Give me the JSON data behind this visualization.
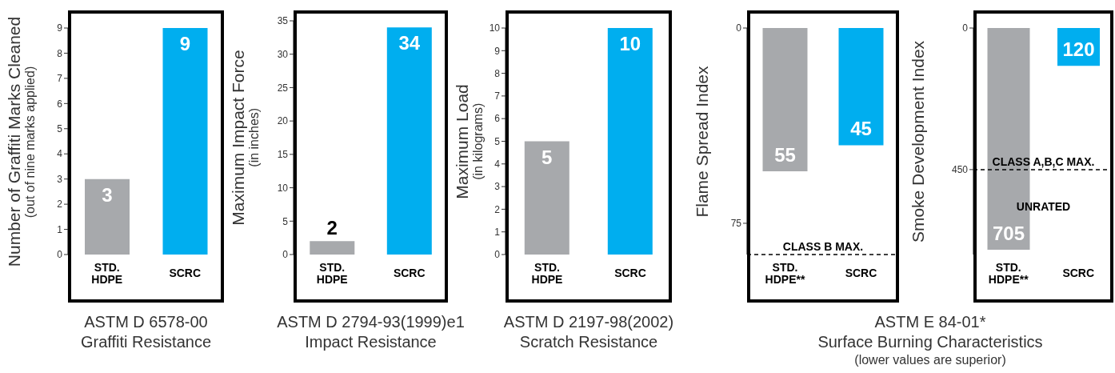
{
  "chart_data": [
    {
      "type": "bar",
      "title": "ASTM D 6578-00",
      "subtitle": "Graffiti Resistance",
      "ylabel": "Number of Graffiti Marks Cleaned\n(out of nine marks applied)",
      "categories": [
        "STD. HDPE",
        "SCRC"
      ],
      "values": [
        3,
        9
      ],
      "colors": [
        "#a7a9ac",
        "#00aeef"
      ],
      "ylim": [
        0,
        9
      ],
      "yticks": [
        0,
        1,
        2,
        3,
        4,
        5,
        6,
        7,
        8,
        9
      ],
      "data_labels": true
    },
    {
      "type": "bar",
      "title": "ASTM D 2794-93(1999)e1",
      "subtitle": "Impact Resistance",
      "ylabel": "Maximum Impact Force\n(in inches)",
      "categories": [
        "STD. HDPE",
        "SCRC"
      ],
      "values": [
        2,
        34
      ],
      "colors": [
        "#a7a9ac",
        "#00aeef"
      ],
      "ylim": [
        0,
        35
      ],
      "yticks": [
        0,
        5,
        10,
        15,
        20,
        25,
        30,
        35
      ],
      "data_labels": true
    },
    {
      "type": "bar",
      "title": "ASTM D 2197-98(2002)",
      "subtitle": "Scratch Resistance",
      "ylabel": "Maximum Load\n(in kilograms)",
      "categories": [
        "STD. HDPE",
        "SCRC"
      ],
      "values": [
        5,
        10
      ],
      "colors": [
        "#a7a9ac",
        "#00aeef"
      ],
      "ylim": [
        0,
        10
      ],
      "yticks": [
        0,
        1,
        2,
        3,
        4,
        5,
        6,
        7,
        8,
        9,
        10
      ],
      "data_labels": true
    },
    {
      "type": "bar",
      "title": "ASTM E 84-01*",
      "subtitle": "Surface Burning Characteristics",
      "annotations": [
        "(lower values are superior)"
      ],
      "ylabel": "Flame Spread Index",
      "categories": [
        "STD. HDPE**",
        "SCRC"
      ],
      "values": [
        55,
        45
      ],
      "colors": [
        "#a7a9ac",
        "#00aeef"
      ],
      "ylim": [
        87,
        0
      ],
      "yticks": [
        0,
        75
      ],
      "data_labels": true,
      "ref_lines": [
        {
          "axis": "y",
          "value": 87,
          "label": "CLASS B MAX.",
          "color": "#000000",
          "line_style": "dashed"
        }
      ]
    },
    {
      "type": "bar",
      "annotations": [
        "UNRATED"
      ],
      "ylabel": "Smoke Development Index",
      "categories": [
        "STD. HDPE**",
        "SCRC"
      ],
      "values": [
        705,
        120
      ],
      "colors": [
        "#a7a9ac",
        "#00aeef"
      ],
      "ylim": [
        720,
        0
      ],
      "yticks": [
        0,
        450
      ],
      "data_labels": true,
      "ref_lines": [
        {
          "axis": "y",
          "value": 450,
          "label": "CLASS A,B,C MAX.",
          "color": "#000000",
          "line_style": "dashed"
        }
      ]
    }
  ]
}
